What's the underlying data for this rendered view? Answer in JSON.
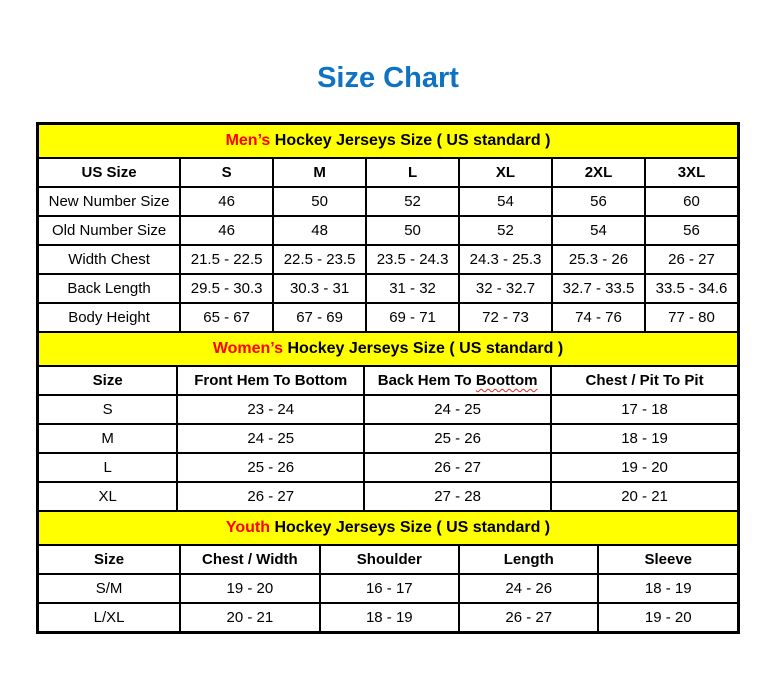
{
  "page": {
    "title": "Size Chart"
  },
  "colors": {
    "title_blue": "#0f72c2",
    "accent_red": "#ff0000",
    "band_yellow": "#ffff00",
    "border_black": "#000000",
    "squiggle_red": "#e02a1d"
  },
  "sections": [
    {
      "id": "mens",
      "heading": {
        "highlight": "Men’s",
        "rest": " Hockey Jerseys Size ( US standard )"
      },
      "columns": [
        {
          "label": "US Size"
        },
        {
          "label": "S"
        },
        {
          "label": "M"
        },
        {
          "label": "L"
        },
        {
          "label": "XL"
        },
        {
          "label": "2XL"
        },
        {
          "label": "3XL"
        }
      ],
      "rows": [
        {
          "label": "New Number Size",
          "values": [
            "46",
            "50",
            "52",
            "54",
            "56",
            "60"
          ]
        },
        {
          "label": "Old Number Size",
          "values": [
            "46",
            "48",
            "50",
            "52",
            "54",
            "56"
          ]
        },
        {
          "label": "Width Chest",
          "values": [
            "21.5 - 22.5",
            "22.5 - 23.5",
            "23.5 - 24.3",
            "24.3 - 25.3",
            "25.3 - 26",
            "26 - 27"
          ]
        },
        {
          "label": "Back Length",
          "values": [
            "29.5 - 30.3",
            "30.3 - 31",
            "31 - 32",
            "32 - 32.7",
            "32.7 - 33.5",
            "33.5 - 34.6"
          ]
        },
        {
          "label": "Body Height",
          "values": [
            "65 - 67",
            "67 - 69",
            "69 - 71",
            "72 - 73",
            "74 - 76",
            "77 - 80"
          ]
        }
      ]
    },
    {
      "id": "womens",
      "heading": {
        "highlight": "Women’s",
        "rest": " Hockey Jerseys Size ( US standard )"
      },
      "columns": [
        {
          "label": "Size"
        },
        {
          "label": "Front Hem To Bottom"
        },
        {
          "label": "Back Hem To ",
          "squiggle": "Boottom"
        },
        {
          "label": "Chest / Pit To Pit"
        }
      ],
      "rows": [
        {
          "label": "S",
          "values": [
            "23 - 24",
            "24 - 25",
            "17 - 18"
          ]
        },
        {
          "label": "M",
          "values": [
            "24 - 25",
            "25 - 26",
            "18 - 19"
          ]
        },
        {
          "label": "L",
          "values": [
            "25 - 26",
            "26 - 27",
            "19 - 20"
          ]
        },
        {
          "label": "XL",
          "values": [
            "26 - 27",
            "27 - 28",
            "20 - 21"
          ]
        }
      ]
    },
    {
      "id": "youth",
      "heading": {
        "highlight": "Youth",
        "rest": " Hockey Jerseys Size ( US standard )"
      },
      "columns": [
        {
          "label": "Size"
        },
        {
          "label": "Chest / Width"
        },
        {
          "label": "Shoulder"
        },
        {
          "label": "Length"
        },
        {
          "label": "Sleeve"
        }
      ],
      "rows": [
        {
          "label": "S/M",
          "values": [
            "19 - 20",
            "16 - 17",
            "24 - 26",
            "18 - 19"
          ]
        },
        {
          "label": "L/XL",
          "values": [
            "20 - 21",
            "18 - 19",
            "26 - 27",
            "19 - 20"
          ]
        }
      ]
    }
  ]
}
